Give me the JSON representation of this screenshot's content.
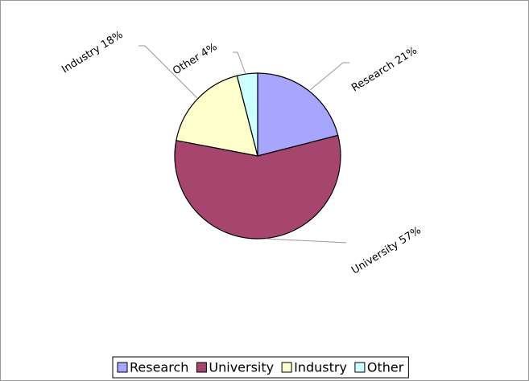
{
  "chart_data": {
    "type": "pie",
    "categories": [
      "Research",
      "University",
      "Industry",
      "Other"
    ],
    "values": [
      21,
      57,
      18,
      4
    ],
    "value_labels": [
      "Research 21%",
      "University 57%",
      "Industry 18%",
      "Other 4%"
    ],
    "colors": [
      "#a6a6ff",
      "#a6466f",
      "#ffffcc",
      "#ccffff"
    ],
    "legend": "bottom"
  }
}
